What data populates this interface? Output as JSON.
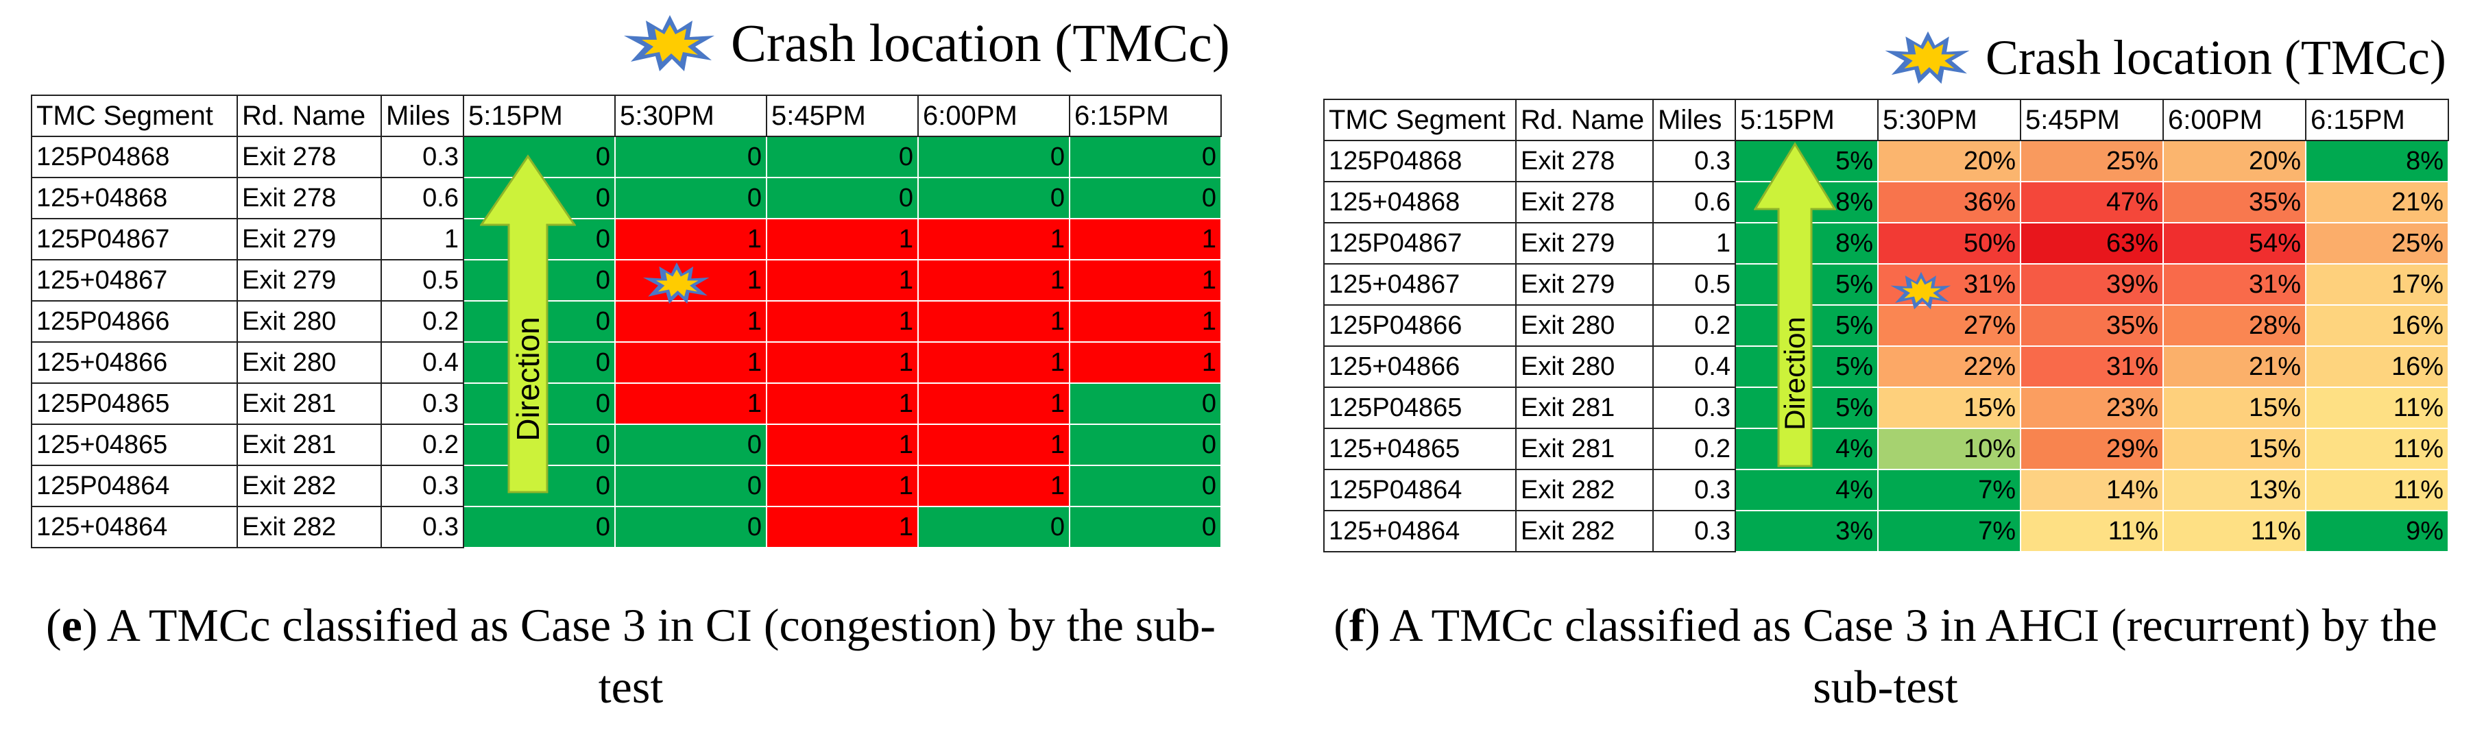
{
  "panel_e": {
    "legend": "Crash location (TMCc)",
    "columns": [
      "TMC Segment",
      "Rd. Name",
      "Miles",
      "5:15PM",
      "5:30PM",
      "5:45PM",
      "6:00PM",
      "6:15PM"
    ],
    "rows": [
      {
        "segment": "125P04868",
        "road": "Exit 278",
        "miles": "0.3",
        "values": [
          "0",
          "0",
          "0",
          "0",
          "0"
        ]
      },
      {
        "segment": "125+04868",
        "road": "Exit 278",
        "miles": "0.6",
        "values": [
          "0",
          "0",
          "0",
          "0",
          "0"
        ]
      },
      {
        "segment": "125P04867",
        "road": "Exit 279",
        "miles": "1",
        "values": [
          "0",
          "1",
          "1",
          "1",
          "1"
        ]
      },
      {
        "segment": "125+04867",
        "road": "Exit 279",
        "miles": "0.5",
        "values": [
          "0",
          "1",
          "1",
          "1",
          "1"
        ]
      },
      {
        "segment": "125P04866",
        "road": "Exit 280",
        "miles": "0.2",
        "values": [
          "0",
          "1",
          "1",
          "1",
          "1"
        ]
      },
      {
        "segment": "125+04866",
        "road": "Exit 280",
        "miles": "0.4",
        "values": [
          "0",
          "1",
          "1",
          "1",
          "1"
        ]
      },
      {
        "segment": "125P04865",
        "road": "Exit 281",
        "miles": "0.3",
        "values": [
          "0",
          "1",
          "1",
          "1",
          "0"
        ]
      },
      {
        "segment": "125+04865",
        "road": "Exit 281",
        "miles": "0.2",
        "values": [
          "0",
          "0",
          "1",
          "1",
          "0"
        ]
      },
      {
        "segment": "125P04864",
        "road": "Exit 282",
        "miles": "0.3",
        "values": [
          "0",
          "0",
          "1",
          "1",
          "0"
        ]
      },
      {
        "segment": "125+04864",
        "road": "Exit 282",
        "miles": "0.3",
        "values": [
          "0",
          "0",
          "1",
          "0",
          "0"
        ]
      }
    ],
    "direction_label": "Direction",
    "caption_label": "e",
    "caption_text": ") A TMCc classified as Case 3 in CI (congestion) by the sub-test",
    "crash_cell": {
      "row": 3,
      "col": 1
    },
    "colors": {
      "zero": "#00a950",
      "one": "#ff0000"
    }
  },
  "panel_f": {
    "legend": "Crash location (TMCc)",
    "columns": [
      "TMC Segment",
      "Rd. Name",
      "Miles",
      "5:15PM",
      "5:30PM",
      "5:45PM",
      "6:00PM",
      "6:15PM"
    ],
    "rows": [
      {
        "segment": "125P04868",
        "road": "Exit 278",
        "miles": "0.3",
        "values": [
          "5%",
          "20%",
          "25%",
          "20%",
          "8%"
        ]
      },
      {
        "segment": "125+04868",
        "road": "Exit 278",
        "miles": "0.6",
        "values": [
          "8%",
          "36%",
          "47%",
          "35%",
          "21%"
        ]
      },
      {
        "segment": "125P04867",
        "road": "Exit 279",
        "miles": "1",
        "values": [
          "8%",
          "50%",
          "63%",
          "54%",
          "25%"
        ]
      },
      {
        "segment": "125+04867",
        "road": "Exit 279",
        "miles": "0.5",
        "values": [
          "5%",
          "31%",
          "39%",
          "31%",
          "17%"
        ]
      },
      {
        "segment": "125P04866",
        "road": "Exit 280",
        "miles": "0.2",
        "values": [
          "5%",
          "27%",
          "35%",
          "28%",
          "16%"
        ]
      },
      {
        "segment": "125+04866",
        "road": "Exit 280",
        "miles": "0.4",
        "values": [
          "5%",
          "22%",
          "31%",
          "21%",
          "16%"
        ]
      },
      {
        "segment": "125P04865",
        "road": "Exit 281",
        "miles": "0.3",
        "values": [
          "5%",
          "15%",
          "23%",
          "15%",
          "11%"
        ]
      },
      {
        "segment": "125+04865",
        "road": "Exit 281",
        "miles": "0.2",
        "values": [
          "4%",
          "10%",
          "29%",
          "15%",
          "11%"
        ]
      },
      {
        "segment": "125P04864",
        "road": "Exit 282",
        "miles": "0.3",
        "values": [
          "4%",
          "7%",
          "14%",
          "13%",
          "11%"
        ]
      },
      {
        "segment": "125+04864",
        "road": "Exit 282",
        "miles": "0.3",
        "values": [
          "3%",
          "7%",
          "11%",
          "11%",
          "9%"
        ]
      }
    ],
    "direction_label": "Direction",
    "caption_label": "f",
    "caption_text": ") A TMCc classified as Case 3 in AHCI (recurrent) by the sub-test",
    "crash_cell": {
      "row": 3,
      "col": 1
    },
    "cell_colors": [
      [
        "#00a950",
        "#fbb56e",
        "#f99a5e",
        "#fbb56e",
        "#00a950"
      ],
      [
        "#00a950",
        "#f8744c",
        "#f4473a",
        "#f8784e",
        "#fdc074"
      ],
      [
        "#00a950",
        "#f23a34",
        "#e8161c",
        "#f02e2e",
        "#fbad6a"
      ],
      [
        "#00a950",
        "#f96a4a",
        "#f65a44",
        "#f96a4a",
        "#fed07c"
      ],
      [
        "#00a950",
        "#fa8652",
        "#f8744c",
        "#fa8652",
        "#fed47e"
      ],
      [
        "#00a950",
        "#fca866",
        "#f96a4a",
        "#fbb06a",
        "#fed47e"
      ],
      [
        "#00a950",
        "#fed07c",
        "#fb9e60",
        "#fed07c",
        "#fee084"
      ],
      [
        "#00a950",
        "#a6d270",
        "#f8844f",
        "#fed07c",
        "#fee084"
      ],
      [
        "#00a950",
        "#00a950",
        "#fed282",
        "#fedc86",
        "#fee084"
      ],
      [
        "#00a950",
        "#00a950",
        "#fee084",
        "#fee084",
        "#00a950"
      ]
    ]
  }
}
